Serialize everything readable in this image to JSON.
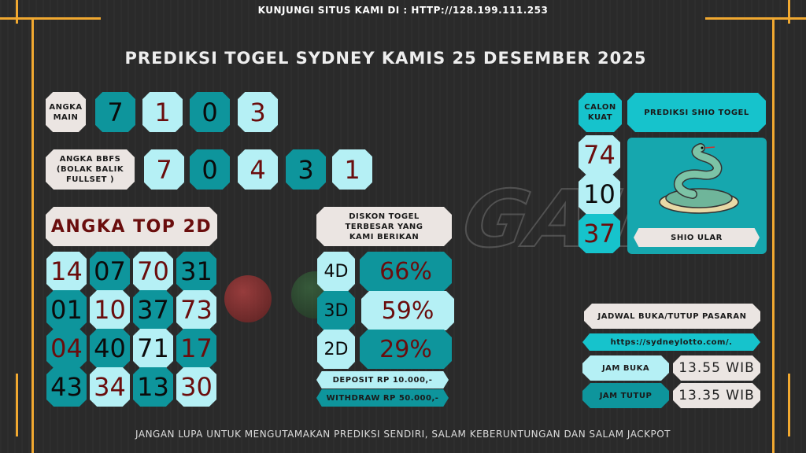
{
  "top_banner": "KUNJUNGI SITUS KAMI DI : HTTP://128.199.111.253",
  "title": "PREDIKSI TOGEL SYDNEY KAMIS 25 DESEMBER 2025",
  "angka_main": {
    "label": "ANGKA MAIN",
    "digits": [
      "7",
      "1",
      "0",
      "3"
    ]
  },
  "bbfs": {
    "label": "ANGKA BBFS (BOLAK BALIK FULLSET )",
    "digits": [
      "7",
      "0",
      "4",
      "3",
      "1"
    ]
  },
  "top2d": {
    "label": "ANGKA TOP 2D",
    "numbers": [
      "14",
      "07",
      "70",
      "31",
      "01",
      "10",
      "37",
      "73",
      "04",
      "40",
      "71",
      "17",
      "43",
      "34",
      "13",
      "30"
    ]
  },
  "diskon": {
    "label": "DISKON TOGEL TERBESAR YANG KAMI BERIKAN",
    "rows": [
      {
        "type": "4D",
        "pct": "66%"
      },
      {
        "type": "3D",
        "pct": "59%"
      },
      {
        "type": "2D",
        "pct": "29%"
      }
    ],
    "deposit": "DEPOSIT RP 10.000,-",
    "withdraw": "WITHDRAW RP 50.000,-"
  },
  "calon_kuat": {
    "label": "CALON KUAT",
    "numbers": [
      "74",
      "10",
      "37"
    ]
  },
  "shio": {
    "label": "PREDIKSI SHIO TOGEL",
    "name": "SHIO ULAR"
  },
  "jadwal": {
    "label": "JADWAL BUKA/TUTUP PASARAN",
    "url": "https://sydneylotto.com/.",
    "buka_label": "JAM BUKA",
    "buka": "13.55 WIB",
    "tutup_label": "JAM TUTUP",
    "tutup": "13.35 WIB"
  },
  "footer": "JANGAN LUPA UNTUK MENGUTAMAKAN PREDIKSI SENDIRI, SALAM KEBERUNTUNGAN DAN SALAM JACKPOT",
  "colors": {
    "teal": "#0e959c",
    "light": "#b5f0f5",
    "beige": "#ebe5e2",
    "maroon": "#6a0d0d",
    "frame": "#f0a830"
  }
}
